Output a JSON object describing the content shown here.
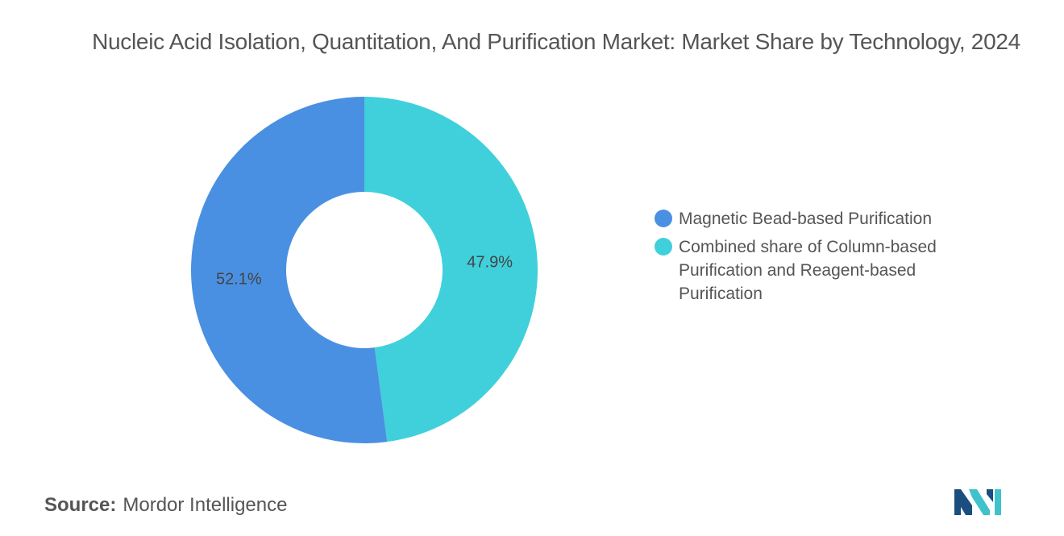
{
  "title": "Nucleic Acid Isolation, Quantitation, And Purification Market: Market Share by Technology, 2024",
  "chart_data": {
    "type": "pie",
    "style": "donut",
    "title": "Nucleic Acid Isolation, Quantitation, And Purification Market: Market Share by Technology, 2024",
    "slices": [
      {
        "label": "Magnetic Bead-based Purification",
        "value": 52.1,
        "display": "52.1%",
        "color": "#4a90e2"
      },
      {
        "label": "Combined share of Column-based Purification and Reagent-based Purification",
        "value": 47.9,
        "display": "47.9%",
        "color": "#40d0db"
      }
    ],
    "legend_position": "right"
  },
  "source": {
    "label": "Source:",
    "text": "Mordor Intelligence"
  },
  "logo": {
    "icon": "mordor-intelligence-logo",
    "colors": [
      "#1a4e7e",
      "#3fc2cc"
    ]
  }
}
